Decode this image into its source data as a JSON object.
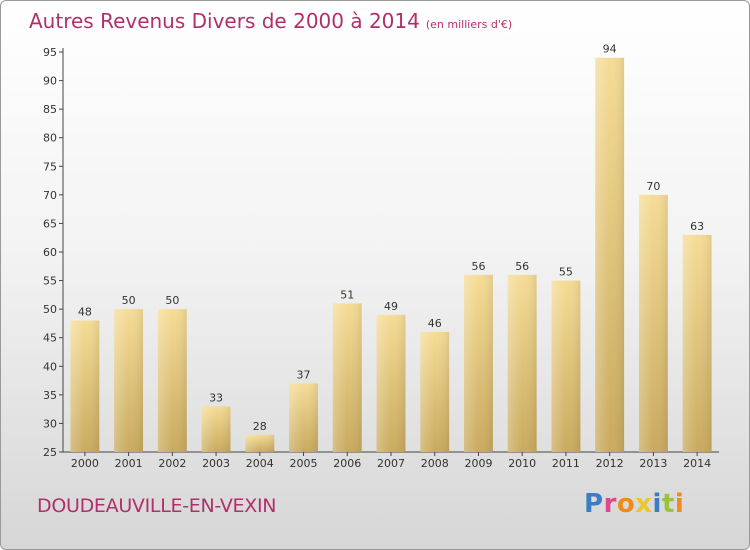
{
  "header": {
    "title": "Autres Revenus Divers de 2000 à 2014",
    "unit": "(en milliers d'€)"
  },
  "footer": {
    "commune": "DOUDEAUVILLE-EN-VEXIN",
    "logo": [
      "P",
      "r",
      "o",
      "x",
      "i",
      "t",
      "i"
    ]
  },
  "colors": {
    "title": "#b0306a",
    "bar_top": "#f5dc96",
    "bar_bottom": "#c9aa5e",
    "logo": [
      "#3b7dc4",
      "#e0468f",
      "#f08a1c",
      "#e8c82a",
      "#3b7dc4",
      "#9ac23c",
      "#f08a1c"
    ]
  },
  "chart_data": {
    "type": "bar",
    "categories": [
      "2000",
      "2001",
      "2002",
      "2003",
      "2004",
      "2005",
      "2006",
      "2007",
      "2008",
      "2009",
      "2010",
      "2011",
      "2012",
      "2013",
      "2014"
    ],
    "values": [
      48,
      50,
      50,
      33,
      28,
      37,
      51,
      49,
      46,
      56,
      56,
      55,
      94,
      70,
      63
    ],
    "title": "Autres Revenus Divers de 2000 à 2014",
    "xlabel": "",
    "ylabel": "",
    "ylim": [
      25,
      95
    ],
    "yticks": [
      25,
      30,
      35,
      40,
      45,
      50,
      55,
      60,
      65,
      70,
      75,
      80,
      85,
      90,
      95
    ],
    "grid": false,
    "legend": "none",
    "data_labels": true
  }
}
